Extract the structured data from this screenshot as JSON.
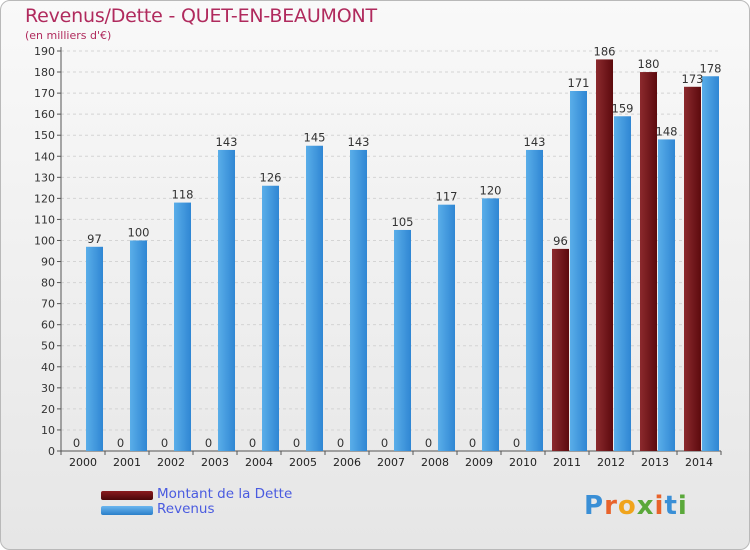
{
  "page": {
    "title": "Revenus/Dette - QUET-EN-BEAUMONT",
    "subtitle": "(en milliers d'€)",
    "logo": "Proxiti"
  },
  "colors": {
    "title": "#b02a5d",
    "dette": "#6b0f12",
    "revenus": "#3a92dc",
    "legend_text": "#4a5be0"
  },
  "chart_data": {
    "type": "bar",
    "title": "Revenus/Dette - QUET-EN-BEAUMONT",
    "ylabel": "(en milliers d'€)",
    "categories": [
      "2000",
      "2001",
      "2002",
      "2003",
      "2004",
      "2005",
      "2006",
      "2007",
      "2008",
      "2009",
      "2010",
      "2011",
      "2012",
      "2013",
      "2014"
    ],
    "series": [
      {
        "name": "Montant de la Dette",
        "color": "#6b0f12",
        "values": [
          0,
          0,
          0,
          0,
          0,
          0,
          0,
          0,
          0,
          0,
          0,
          96,
          186,
          180,
          173
        ]
      },
      {
        "name": "Revenus",
        "color": "#3a92dc",
        "values": [
          97,
          100,
          118,
          143,
          126,
          145,
          143,
          105,
          117,
          120,
          143,
          171,
          159,
          148,
          178
        ]
      }
    ],
    "ylim": [
      0,
      190
    ],
    "yticks": [
      0,
      10,
      20,
      30,
      40,
      50,
      60,
      70,
      80,
      90,
      100,
      110,
      120,
      130,
      140,
      150,
      160,
      170,
      180,
      190
    ],
    "grid": true,
    "legend_position": "bottom-left"
  }
}
